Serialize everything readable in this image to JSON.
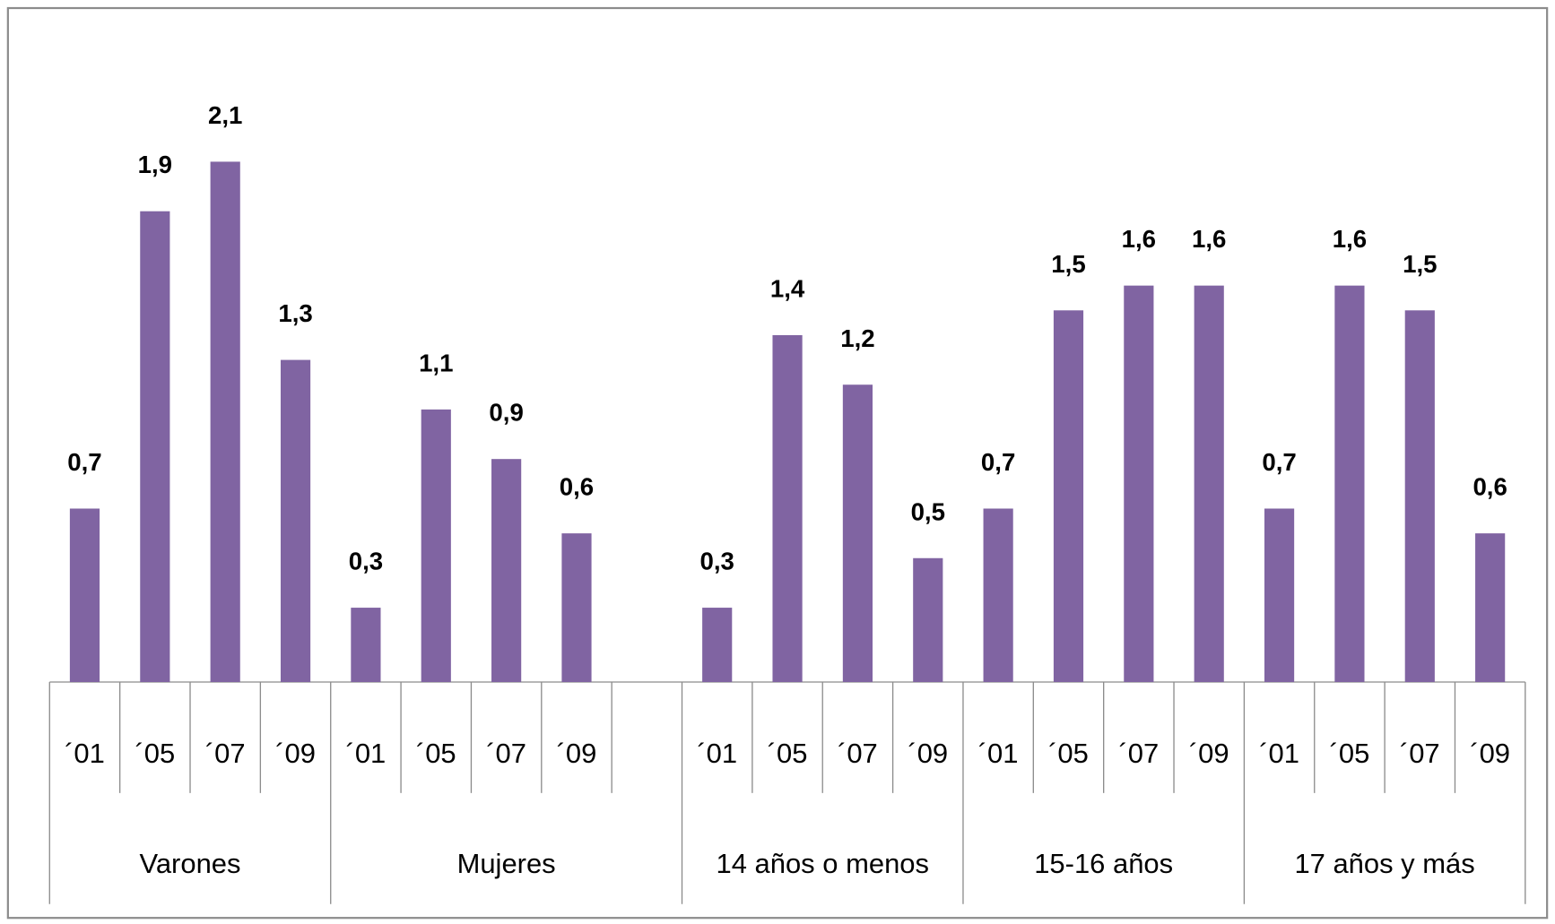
{
  "chart_data": {
    "type": "bar",
    "color": "#8064a2",
    "ylim": [
      0,
      2.5
    ],
    "groups": [
      {
        "name": "Varones",
        "categories": [
          "´01",
          "´05",
          "´07",
          "´09"
        ],
        "values": [
          0.7,
          1.9,
          2.1,
          1.3
        ],
        "value_labels": [
          "0,7",
          "1,9",
          "2,1",
          "1,3"
        ]
      },
      {
        "name": "Mujeres",
        "categories": [
          "´01",
          "´05",
          "´07",
          "´09",
          null
        ],
        "values": [
          0.3,
          1.1,
          0.9,
          0.6,
          null
        ],
        "value_labels": [
          "0,3",
          "1,1",
          "0,9",
          "0,6",
          null
        ]
      },
      {
        "name": "14 años o menos",
        "categories": [
          "´01",
          "´05",
          "´07",
          "´09"
        ],
        "values": [
          0.3,
          1.4,
          1.2,
          0.5
        ],
        "value_labels": [
          "0,3",
          "1,4",
          "1,2",
          "0,5"
        ]
      },
      {
        "name": "15-16 años",
        "categories": [
          "´01",
          "´05",
          "´07",
          "´09"
        ],
        "values": [
          0.7,
          1.5,
          1.6,
          1.6
        ],
        "value_labels": [
          "0,7",
          "1,5",
          "1,6",
          "1,6"
        ]
      },
      {
        "name": "17 años y más",
        "categories": [
          "´01",
          "´05",
          "´07",
          "´09"
        ],
        "values": [
          0.7,
          1.6,
          1.5,
          0.6
        ],
        "value_labels": [
          "0,7",
          "1,6",
          "1,5",
          "0,6"
        ]
      }
    ]
  }
}
